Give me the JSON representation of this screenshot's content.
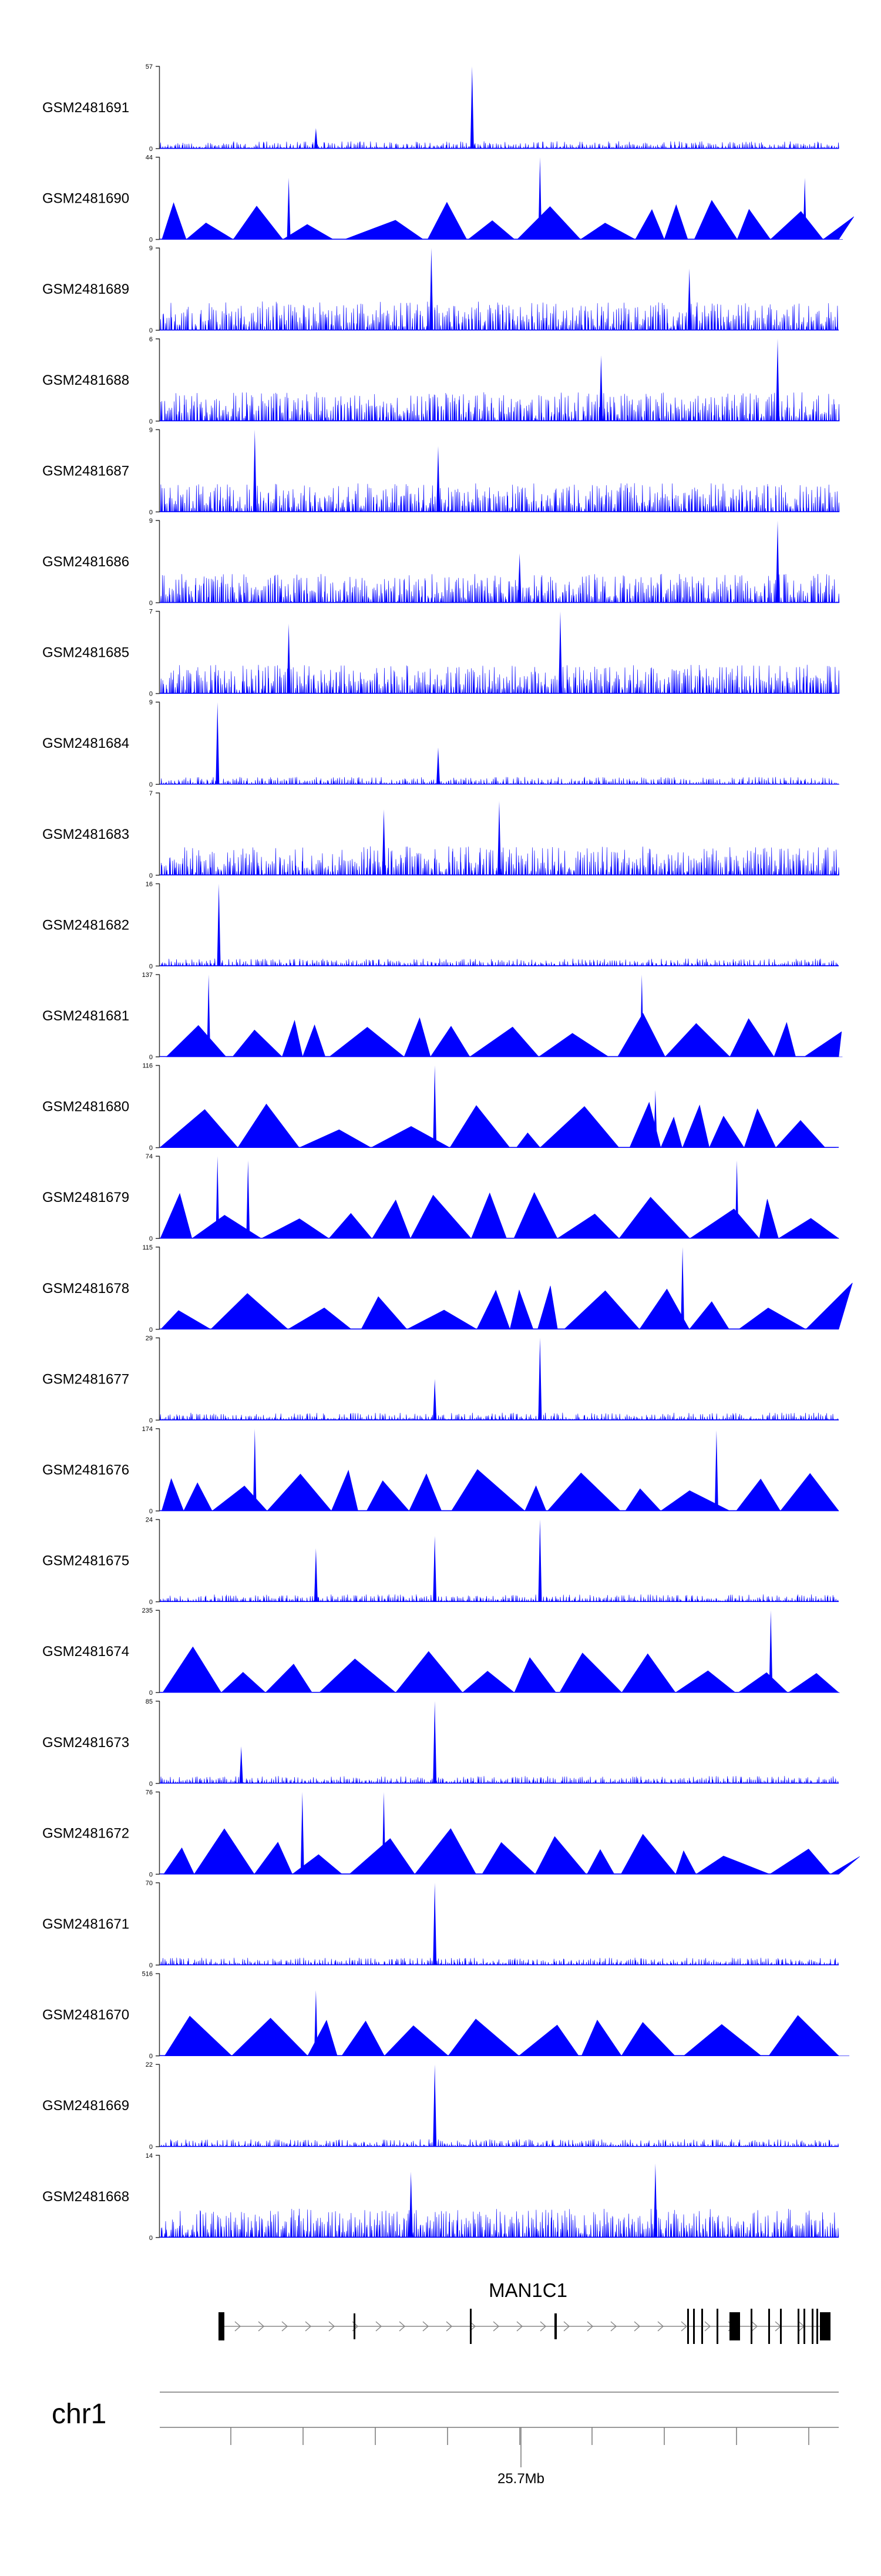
{
  "chart_data": {
    "type": "area",
    "color": "#0000ff",
    "tracks": [
      {
        "name": "GSM2481691",
        "max": "57",
        "min": "0",
        "ymax": 57,
        "pattern": "spiky",
        "peaks": [
          [
            0.46,
            1.0
          ],
          [
            0.23,
            0.25
          ]
        ]
      },
      {
        "name": "GSM2481690",
        "max": "44",
        "min": "0",
        "ymax": 44,
        "pattern": "triangles",
        "peaks": [
          [
            0.56,
            1.0
          ],
          [
            0.19,
            0.75
          ],
          [
            0.95,
            0.75
          ]
        ]
      },
      {
        "name": "GSM2481689",
        "max": "9",
        "min": "0",
        "ymax": 9,
        "pattern": "dense",
        "peaks": [
          [
            0.4,
            1.0
          ],
          [
            0.78,
            0.75
          ]
        ]
      },
      {
        "name": "GSM2481688",
        "max": "6",
        "min": "0",
        "ymax": 6,
        "pattern": "dense",
        "peaks": [
          [
            0.91,
            1.0
          ],
          [
            0.65,
            0.8
          ]
        ]
      },
      {
        "name": "GSM2481687",
        "max": "9",
        "min": "0",
        "ymax": 9,
        "pattern": "dense",
        "peaks": [
          [
            0.14,
            1.0
          ],
          [
            0.41,
            0.8
          ]
        ]
      },
      {
        "name": "GSM2481686",
        "max": "9",
        "min": "0",
        "ymax": 9,
        "pattern": "dense",
        "peaks": [
          [
            0.91,
            1.0
          ],
          [
            0.53,
            0.6
          ]
        ]
      },
      {
        "name": "GSM2481685",
        "max": "7",
        "min": "0",
        "ymax": 7,
        "pattern": "dense",
        "peaks": [
          [
            0.59,
            1.0
          ],
          [
            0.19,
            0.85
          ]
        ]
      },
      {
        "name": "GSM2481684",
        "max": "9",
        "min": "0",
        "ymax": 9,
        "pattern": "spiky",
        "peaks": [
          [
            0.085,
            1.0
          ],
          [
            0.41,
            0.45
          ]
        ]
      },
      {
        "name": "GSM2481683",
        "max": "7",
        "min": "0",
        "ymax": 7,
        "pattern": "dense",
        "peaks": [
          [
            0.5,
            0.9
          ],
          [
            0.33,
            0.8
          ]
        ]
      },
      {
        "name": "GSM2481682",
        "max": "16",
        "min": "0",
        "ymax": 16,
        "pattern": "spiky",
        "peaks": [
          [
            0.087,
            1.0
          ]
        ]
      },
      {
        "name": "GSM2481681",
        "max": "137",
        "min": "0",
        "ymax": 137,
        "pattern": "triangles",
        "peaks": [
          [
            0.072,
            1.0
          ],
          [
            0.71,
            1.0
          ]
        ]
      },
      {
        "name": "GSM2481680",
        "max": "116",
        "min": "0",
        "ymax": 116,
        "pattern": "triangles",
        "peaks": [
          [
            0.405,
            1.0
          ],
          [
            0.73,
            0.7
          ]
        ]
      },
      {
        "name": "GSM2481679",
        "max": "74",
        "min": "0",
        "ymax": 74,
        "pattern": "triangles",
        "peaks": [
          [
            0.085,
            1.0
          ],
          [
            0.13,
            0.95
          ],
          [
            0.85,
            0.95
          ]
        ]
      },
      {
        "name": "GSM2481678",
        "max": "115",
        "min": "0",
        "ymax": 115,
        "pattern": "triangles",
        "peaks": [
          [
            0.77,
            1.0
          ]
        ]
      },
      {
        "name": "GSM2481677",
        "max": "29",
        "min": "0",
        "ymax": 29,
        "pattern": "spiky",
        "peaks": [
          [
            0.56,
            1.0
          ],
          [
            0.405,
            0.5
          ]
        ]
      },
      {
        "name": "GSM2481676",
        "max": "174",
        "min": "0",
        "ymax": 174,
        "pattern": "triangles",
        "peaks": [
          [
            0.14,
            1.0
          ],
          [
            0.82,
            0.98
          ]
        ]
      },
      {
        "name": "GSM2481675",
        "max": "24",
        "min": "0",
        "ymax": 24,
        "pattern": "spiky",
        "peaks": [
          [
            0.56,
            1.0
          ],
          [
            0.405,
            0.8
          ],
          [
            0.23,
            0.65
          ]
        ]
      },
      {
        "name": "GSM2481674",
        "max": "235",
        "min": "0",
        "ymax": 235,
        "pattern": "triangles",
        "peaks": [
          [
            0.9,
            1.0
          ]
        ]
      },
      {
        "name": "GSM2481673",
        "max": "85",
        "min": "0",
        "ymax": 85,
        "pattern": "spiky",
        "peaks": [
          [
            0.405,
            1.0
          ],
          [
            0.12,
            0.45
          ]
        ]
      },
      {
        "name": "GSM2481672",
        "max": "76",
        "min": "0",
        "ymax": 76,
        "pattern": "triangles",
        "peaks": [
          [
            0.21,
            1.0
          ],
          [
            0.33,
            1.0
          ]
        ]
      },
      {
        "name": "GSM2481671",
        "max": "70",
        "min": "0",
        "ymax": 70,
        "pattern": "spiky",
        "peaks": [
          [
            0.405,
            1.0
          ]
        ]
      },
      {
        "name": "GSM2481670",
        "max": "516",
        "min": "0",
        "ymax": 516,
        "pattern": "triangles",
        "peaks": [
          [
            0.23,
            0.8
          ]
        ]
      },
      {
        "name": "GSM2481669",
        "max": "22",
        "min": "0",
        "ymax": 22,
        "pattern": "spiky",
        "peaks": [
          [
            0.405,
            1.0
          ]
        ]
      },
      {
        "name": "GSM2481668",
        "max": "14",
        "min": "0",
        "ymax": 14,
        "pattern": "dense",
        "peaks": [
          [
            0.73,
            0.9
          ],
          [
            0.37,
            0.8
          ]
        ]
      }
    ],
    "gene": {
      "name": "MAN1C1",
      "strand": "+"
    },
    "chromosome": "chr1",
    "axis_label": "25.7Mb"
  }
}
